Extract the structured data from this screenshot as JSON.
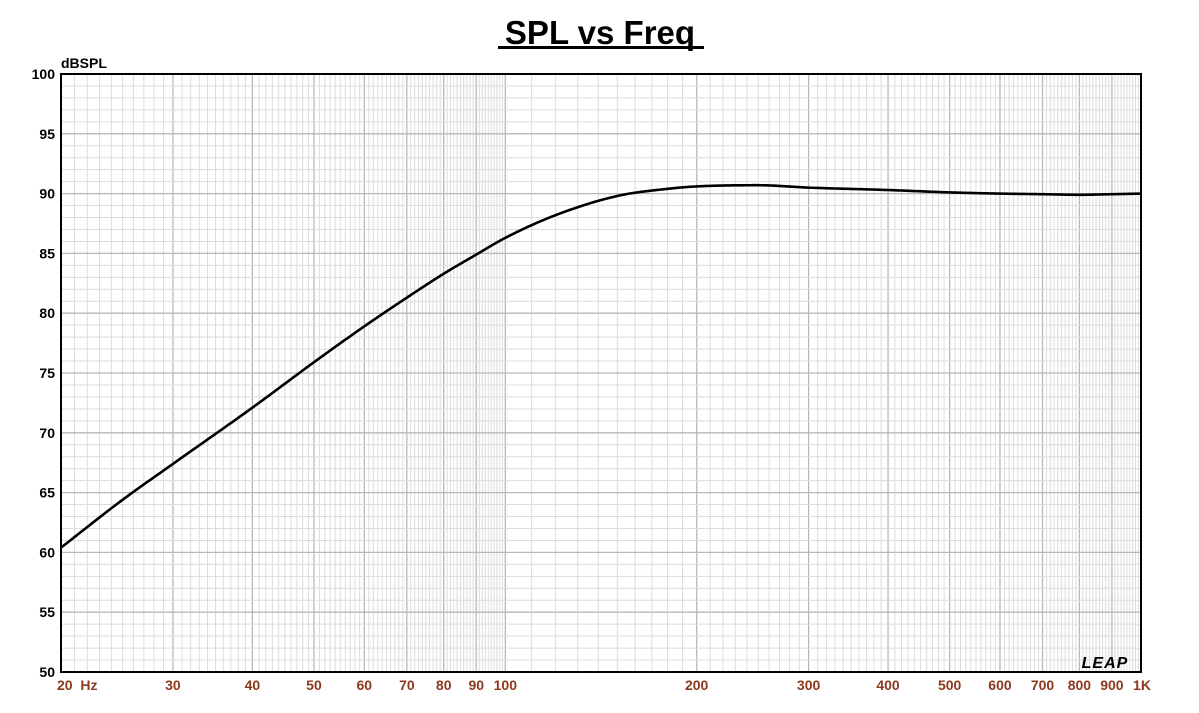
{
  "chart_data": {
    "type": "line",
    "title": "SPL vs Freq",
    "ylabel": "dBSPL",
    "xlabel": "",
    "x_scale": "log",
    "xlim": [
      20,
      1000
    ],
    "ylim": [
      50,
      100
    ],
    "grid": true,
    "x_ticks": [
      {
        "value": 20,
        "label": "20  Hz"
      },
      {
        "value": 30,
        "label": "30"
      },
      {
        "value": 40,
        "label": "40"
      },
      {
        "value": 50,
        "label": "50"
      },
      {
        "value": 60,
        "label": "60"
      },
      {
        "value": 70,
        "label": "70"
      },
      {
        "value": 80,
        "label": "80"
      },
      {
        "value": 90,
        "label": "90"
      },
      {
        "value": 100,
        "label": "100"
      },
      {
        "value": 200,
        "label": "200"
      },
      {
        "value": 300,
        "label": "300"
      },
      {
        "value": 400,
        "label": "400"
      },
      {
        "value": 500,
        "label": "500"
      },
      {
        "value": 600,
        "label": "600"
      },
      {
        "value": 700,
        "label": "700"
      },
      {
        "value": 800,
        "label": "800"
      },
      {
        "value": 900,
        "label": "900"
      },
      {
        "value": 1000,
        "label": "1K"
      }
    ],
    "y_ticks": [
      {
        "value": 100,
        "label": "100"
      },
      {
        "value": 95,
        "label": "95"
      },
      {
        "value": 90,
        "label": "90"
      },
      {
        "value": 85,
        "label": "85"
      },
      {
        "value": 80,
        "label": "80"
      },
      {
        "value": 75,
        "label": "75"
      },
      {
        "value": 70,
        "label": "70"
      },
      {
        "value": 65,
        "label": "65"
      },
      {
        "value": 60,
        "label": "60"
      },
      {
        "value": 55,
        "label": "55"
      },
      {
        "value": 50,
        "label": "50"
      }
    ],
    "series": [
      {
        "x": [
          20,
          25,
          30,
          40,
          50,
          60,
          70,
          80,
          90,
          100,
          120,
          150,
          180,
          200,
          250,
          300,
          400,
          500,
          600,
          700,
          800,
          900,
          1000
        ],
        "y": [
          60.4,
          64.4,
          67.4,
          72.1,
          75.9,
          78.9,
          81.3,
          83.3,
          84.9,
          86.3,
          88.2,
          89.8,
          90.4,
          90.6,
          90.7,
          90.5,
          90.3,
          90.1,
          90.0,
          89.95,
          89.9,
          89.95,
          90.0
        ]
      }
    ],
    "colors": {
      "line": "#000000",
      "major_grid": "#b8b8b8",
      "minor_grid": "#dcdcdc",
      "x_tick_text": "#8b3a1e",
      "y_tick_text": "#000000",
      "frame": "#000000"
    }
  },
  "logo": {
    "text": "LEAP"
  }
}
